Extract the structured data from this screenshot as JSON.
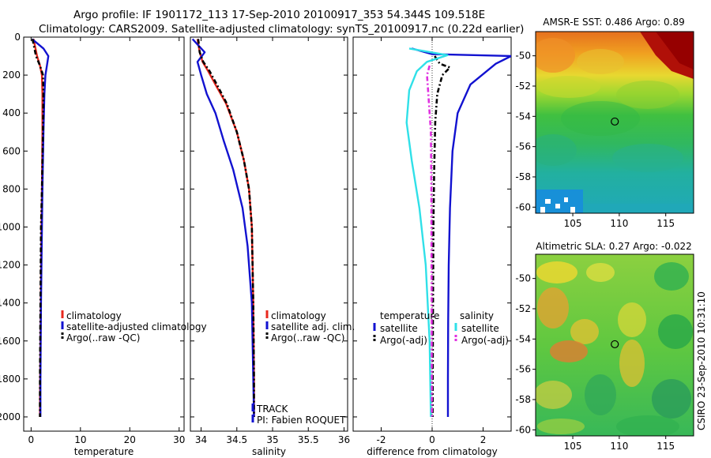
{
  "figure": {
    "title_line1": "Argo profile: IF 1901172_113 17-Sep-2010 20100917_353 54.344S 109.518E",
    "title_line2": "Climatology: CARS2009. Satellite-adjusted climatology: synTS_20100917.nc (0.22d earlier)",
    "side_label": "CSIRO 23-Sep-2010 10:31:10"
  },
  "colors": {
    "climatology": "#e8281e",
    "satellite": "#1212d0",
    "argo": "#000000",
    "sal_satellite": "#30e0e8",
    "sal_argo": "#e030e0"
  },
  "chart_data": [
    {
      "id": "temperature",
      "type": "line",
      "xlabel": "temperature",
      "ylabel": "",
      "xlim": [
        -1.5,
        31
      ],
      "ylim": [
        2075,
        0
      ],
      "xticks": [
        0,
        10,
        20,
        30
      ],
      "xtick_labels": [
        "0",
        "10",
        "20",
        "30"
      ],
      "yticks": [
        0,
        200,
        400,
        600,
        800,
        1000,
        1200,
        1400,
        1600,
        1800,
        2000
      ],
      "ytick_labels": [
        "0",
        "200",
        "400",
        "600",
        "800",
        "1000",
        "1200",
        "1400",
        "1600",
        "1800",
        "2000"
      ],
      "legend": [
        "climatology",
        "satellite-adjusted climatology",
        "Argo(..raw -QC)"
      ],
      "legend_position": "lower-right",
      "series": [
        {
          "name": "climatology",
          "style": "solid",
          "color_key": "climatology",
          "x": [
            0.5,
            0.8,
            1.2,
            1.8,
            2.2,
            2.3,
            2.3,
            2.2,
            2.1,
            2.0,
            1.9,
            1.8,
            1.8
          ],
          "depth": [
            10,
            50,
            100,
            150,
            200,
            300,
            500,
            800,
            1000,
            1300,
            1600,
            1900,
            2000
          ]
        },
        {
          "name": "satellite-adjusted climatology",
          "style": "solid",
          "color_key": "satellite",
          "x": [
            0.2,
            2.5,
            3.5,
            3.2,
            2.9,
            2.7,
            2.5,
            2.3,
            2.2,
            2.0,
            1.9,
            1.9
          ],
          "depth": [
            10,
            60,
            100,
            150,
            200,
            300,
            500,
            800,
            1000,
            1400,
            1800,
            2000
          ]
        },
        {
          "name": "Argo(..raw -QC)",
          "style": "dashed",
          "color_key": "argo",
          "x": [
            0.3,
            0.6,
            1.0,
            1.8,
            2.4,
            2.5,
            2.4,
            2.2,
            2.0,
            1.9,
            1.8,
            1.8
          ],
          "depth": [
            10,
            50,
            100,
            150,
            200,
            300,
            500,
            800,
            1000,
            1400,
            1800,
            2000
          ]
        }
      ]
    },
    {
      "id": "salinity",
      "type": "line",
      "xlabel": "salinity",
      "ylabel": "",
      "xlim": [
        33.85,
        36.05
      ],
      "ylim": [
        2075,
        0
      ],
      "xticks": [
        34,
        34.5,
        35,
        35.5,
        36
      ],
      "xtick_labels": [
        "34",
        "34.5",
        "35",
        "35.5",
        "36"
      ],
      "legend": [
        "climatology",
        "satellite adj. clim.",
        "Argo(..raw -QC)"
      ],
      "legend_position": "lower-right",
      "annotations": [
        "TRACK",
        "PI: Fabien ROQUET"
      ],
      "series": [
        {
          "name": "climatology",
          "style": "solid",
          "color_key": "climatology",
          "x": [
            33.95,
            33.98,
            34.02,
            34.1,
            34.2,
            34.35,
            34.5,
            34.6,
            34.67,
            34.71,
            34.73,
            34.74,
            34.74
          ],
          "depth": [
            10,
            80,
            130,
            180,
            250,
            350,
            500,
            650,
            800,
            1000,
            1400,
            1800,
            2000
          ]
        },
        {
          "name": "satellite adj. clim.",
          "style": "solid",
          "color_key": "satellite",
          "x": [
            33.88,
            34.05,
            33.95,
            34.0,
            34.08,
            34.2,
            34.32,
            34.45,
            34.58,
            34.65,
            34.71,
            34.73,
            34.74
          ],
          "depth": [
            10,
            80,
            130,
            200,
            300,
            400,
            550,
            700,
            900,
            1100,
            1400,
            1800,
            2000
          ]
        },
        {
          "name": "Argo(..raw -QC)",
          "style": "dashed",
          "color_key": "argo",
          "x": [
            33.96,
            33.98,
            34.03,
            34.12,
            34.22,
            34.36,
            34.5,
            34.6,
            34.67,
            34.71,
            34.73,
            34.74,
            34.74
          ],
          "depth": [
            10,
            80,
            130,
            180,
            250,
            350,
            500,
            650,
            800,
            1000,
            1400,
            1800,
            2000
          ]
        }
      ]
    },
    {
      "id": "difference",
      "type": "line",
      "xlabel": "difference from climatology",
      "ylabel": "",
      "xlim": [
        -3.1,
        3.1
      ],
      "ylim": [
        2075,
        0
      ],
      "xticks": [
        -2,
        0,
        2
      ],
      "xtick_labels": [
        "-2",
        "0",
        "2"
      ],
      "legend_left_title": "temperature",
      "legend_right_title": "salinity",
      "legend_left": [
        "satellite",
        "Argo(-adj)"
      ],
      "legend_right": [
        "satellite",
        "Argo(-adj)"
      ],
      "legend_position": "lower-center",
      "series": [
        {
          "name": "temperature satellite",
          "style": "solid",
          "color_key": "satellite",
          "x": [
            -0.8,
            0.0,
            3.1,
            2.5,
            1.5,
            1.0,
            0.8,
            0.7,
            0.65,
            0.63,
            0.62,
            0.62
          ],
          "depth": [
            60,
            90,
            100,
            140,
            250,
            400,
            600,
            900,
            1200,
            1500,
            1800,
            2000
          ]
        },
        {
          "name": "temperature Argo(-adj)",
          "style": "dashed",
          "color_key": "argo",
          "x": [
            0.1,
            0.3,
            0.7,
            0.4,
            0.2,
            0.12,
            0.08,
            0.05,
            0.03,
            0.02
          ],
          "depth": [
            100,
            140,
            160,
            200,
            300,
            450,
            700,
            1000,
            1500,
            2000
          ]
        },
        {
          "name": "salinity satellite",
          "style": "solid",
          "color_key": "sal_satellite",
          "x": [
            -0.9,
            0.6,
            -0.2,
            -0.6,
            -0.9,
            -1.0,
            -0.8,
            -0.5,
            -0.25,
            -0.1,
            -0.05
          ],
          "depth": [
            60,
            95,
            130,
            180,
            280,
            450,
            650,
            900,
            1200,
            1600,
            2000
          ]
        },
        {
          "name": "salinity Argo(-adj)",
          "style": "dashed",
          "color_key": "sal_argo",
          "x": [
            -0.1,
            -0.2,
            -0.15,
            -0.05,
            -0.03,
            -0.02,
            -0.01
          ],
          "depth": [
            150,
            200,
            300,
            500,
            800,
            1300,
            2000
          ]
        }
      ]
    },
    {
      "id": "sst_map",
      "type": "heatmap",
      "title": "AMSR-E SST: 0.486 Argo: 0.89",
      "xlim": [
        101,
        118
      ],
      "ylim": [
        -60.4,
        -48.4
      ],
      "xticks": [
        105,
        110,
        115
      ],
      "xtick_labels": [
        "105",
        "110",
        "115"
      ],
      "yticks": [
        -50,
        -52,
        -54,
        -56,
        -58,
        -60
      ],
      "ytick_labels": [
        "-50",
        "-52",
        "-54",
        "-56",
        "-58",
        "-60"
      ],
      "marker": {
        "lon": 109.518,
        "lat": -54.344
      }
    },
    {
      "id": "sla_map",
      "type": "heatmap",
      "title": "Altimetric SLA: 0.27 Argo: -0.022",
      "xlim": [
        101,
        118
      ],
      "ylim": [
        -60.4,
        -48.4
      ],
      "xticks": [
        105,
        110,
        115
      ],
      "xtick_labels": [
        "105",
        "110",
        "115"
      ],
      "yticks": [
        -50,
        -52,
        -54,
        -56,
        -58,
        -60
      ],
      "ytick_labels": [
        "-50",
        "-52",
        "-54",
        "-56",
        "-58",
        "-60"
      ],
      "marker": {
        "lon": 109.518,
        "lat": -54.344
      }
    }
  ]
}
